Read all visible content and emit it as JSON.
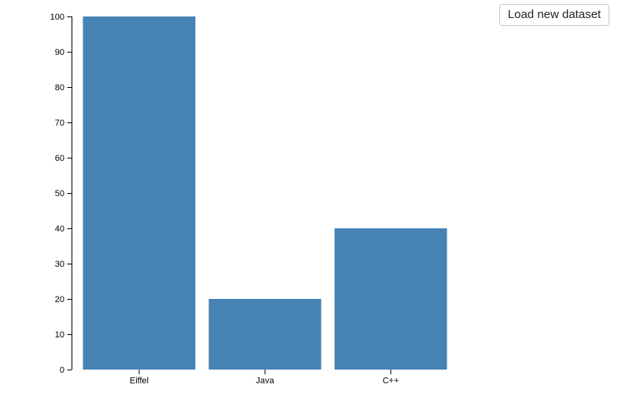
{
  "toolbar": {
    "load_button_label": "Load new dataset"
  },
  "chart_data": {
    "type": "bar",
    "categories": [
      "Eiffel",
      "Java",
      "C++"
    ],
    "values": [
      100,
      20,
      40
    ],
    "title": "",
    "xlabel": "",
    "ylabel": "",
    "ylim": [
      0,
      100
    ],
    "y_ticks": [
      0,
      10,
      20,
      30,
      40,
      50,
      60,
      70,
      80,
      90,
      100
    ],
    "bar_color": "#4682b4",
    "axis_color": "#000000",
    "grid": false,
    "legend": "none"
  },
  "colors": {
    "background": "#ffffff",
    "bar": "#4682b4",
    "button_border": "#c8c8c8",
    "button_text": "#212529"
  }
}
